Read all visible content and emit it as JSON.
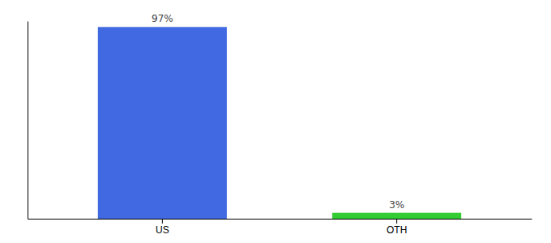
{
  "chart_data": {
    "type": "bar",
    "categories": [
      "US",
      "OTH"
    ],
    "values": [
      97,
      3
    ],
    "value_labels": [
      "97%",
      "3%"
    ],
    "colors": [
      "#4169e1",
      "#33cc33"
    ],
    "ylim": [
      0,
      100
    ],
    "data_labels": true,
    "tick_labels": "x"
  }
}
